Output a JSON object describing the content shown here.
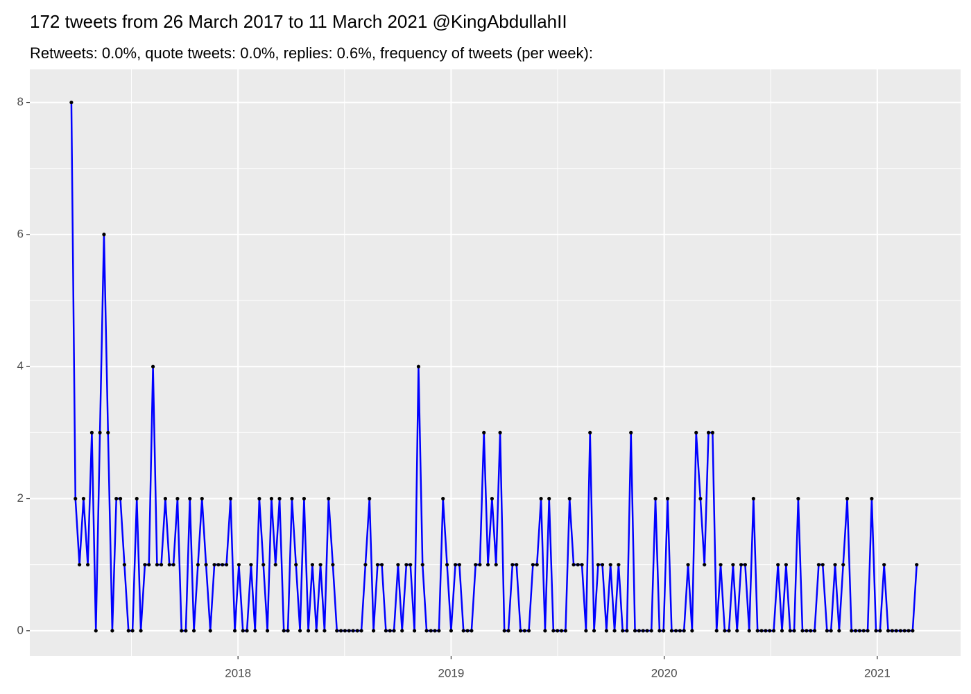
{
  "chart_data": {
    "type": "line",
    "title": "172 tweets from 26 March 2017 to 11 March 2021 @KingAbdullahII",
    "subtitle": "Retweets: 0.0%, quote tweets: 0.0%, replies: 0.6%, frequency of tweets (per week):",
    "x": [
      2017.218,
      2017.237,
      2017.256,
      2017.275,
      2017.295,
      2017.314,
      2017.333,
      2017.352,
      2017.371,
      2017.39,
      2017.41,
      2017.429,
      2017.448,
      2017.467,
      2017.486,
      2017.505,
      2017.525,
      2017.544,
      2017.563,
      2017.582,
      2017.601,
      2017.62,
      2017.64,
      2017.659,
      2017.678,
      2017.697,
      2017.716,
      2017.735,
      2017.755,
      2017.774,
      2017.793,
      2017.812,
      2017.831,
      2017.85,
      2017.87,
      2017.889,
      2017.908,
      2017.927,
      2017.946,
      2017.965,
      2017.985,
      2018.004,
      2018.023,
      2018.042,
      2018.061,
      2018.08,
      2018.1,
      2018.119,
      2018.138,
      2018.157,
      2018.176,
      2018.195,
      2018.215,
      2018.234,
      2018.253,
      2018.272,
      2018.291,
      2018.31,
      2018.33,
      2018.349,
      2018.368,
      2018.387,
      2018.406,
      2018.425,
      2018.445,
      2018.464,
      2018.483,
      2018.502,
      2018.521,
      2018.54,
      2018.56,
      2018.579,
      2018.598,
      2018.617,
      2018.636,
      2018.655,
      2018.675,
      2018.694,
      2018.713,
      2018.732,
      2018.751,
      2018.77,
      2018.79,
      2018.809,
      2018.828,
      2018.847,
      2018.866,
      2018.885,
      2018.905,
      2018.924,
      2018.943,
      2018.962,
      2018.981,
      2019.0,
      2019.02,
      2019.039,
      2019.058,
      2019.077,
      2019.096,
      2019.115,
      2019.135,
      2019.154,
      2019.173,
      2019.192,
      2019.211,
      2019.23,
      2019.25,
      2019.269,
      2019.288,
      2019.307,
      2019.326,
      2019.345,
      2019.365,
      2019.384,
      2019.403,
      2019.422,
      2019.441,
      2019.46,
      2019.48,
      2019.499,
      2019.518,
      2019.537,
      2019.556,
      2019.575,
      2019.595,
      2019.614,
      2019.633,
      2019.652,
      2019.671,
      2019.69,
      2019.71,
      2019.729,
      2019.748,
      2019.767,
      2019.786,
      2019.805,
      2019.825,
      2019.844,
      2019.863,
      2019.882,
      2019.901,
      2019.92,
      2019.94,
      2019.959,
      2019.978,
      2019.997,
      2020.016,
      2020.035,
      2020.055,
      2020.074,
      2020.093,
      2020.112,
      2020.131,
      2020.15,
      2020.17,
      2020.189,
      2020.208,
      2020.227,
      2020.246,
      2020.265,
      2020.284,
      2020.304,
      2020.323,
      2020.342,
      2020.361,
      2020.38,
      2020.399,
      2020.419,
      2020.438,
      2020.457,
      2020.476,
      2020.495,
      2020.514,
      2020.534,
      2020.553,
      2020.572,
      2020.591,
      2020.61,
      2020.629,
      2020.649,
      2020.668,
      2020.687,
      2020.706,
      2020.725,
      2020.744,
      2020.764,
      2020.783,
      2020.802,
      2020.821,
      2020.84,
      2020.859,
      2020.879,
      2020.898,
      2020.917,
      2020.936,
      2020.955,
      2020.974,
      2020.994,
      2021.013,
      2021.032,
      2021.051,
      2021.07,
      2021.089,
      2021.109,
      2021.128,
      2021.147,
      2021.166,
      2021.185
    ],
    "series": [
      {
        "color": "#0000ff",
        "point_color": "#000000",
        "values": [
          8,
          2,
          1,
          2,
          1,
          3,
          0,
          3,
          6,
          3,
          0,
          2,
          2,
          1,
          0,
          0,
          2,
          0,
          1,
          1,
          4,
          1,
          1,
          2,
          1,
          1,
          2,
          0,
          0,
          2,
          0,
          1,
          2,
          1,
          0,
          1,
          1,
          1,
          1,
          2,
          0,
          1,
          0,
          0,
          1,
          0,
          2,
          1,
          0,
          2,
          1,
          2,
          0,
          0,
          2,
          1,
          0,
          2,
          0,
          1,
          0,
          1,
          0,
          2,
          1,
          0,
          0,
          0,
          0,
          0,
          0,
          0,
          1,
          2,
          0,
          1,
          1,
          0,
          0,
          0,
          1,
          0,
          1,
          1,
          0,
          4,
          1,
          0,
          0,
          0,
          0,
          2,
          1,
          0,
          1,
          1,
          0,
          0,
          0,
          1,
          1,
          3,
          1,
          2,
          1,
          3,
          0,
          0,
          1,
          1,
          0,
          0,
          0,
          1,
          1,
          2,
          0,
          2,
          0,
          0,
          0,
          0,
          2,
          1,
          1,
          1,
          0,
          3,
          0,
          1,
          1,
          0,
          1,
          0,
          1,
          0,
          0,
          3,
          0,
          0,
          0,
          0,
          0,
          2,
          0,
          0,
          2,
          0,
          0,
          0,
          0,
          1,
          0,
          3,
          2,
          1,
          3,
          3,
          0,
          1,
          0,
          0,
          1,
          0,
          1,
          1,
          0,
          2,
          0,
          0,
          0,
          0,
          0,
          1,
          0,
          1,
          0,
          0,
          2,
          0,
          0,
          0,
          0,
          1,
          1,
          0,
          0,
          1,
          0,
          1,
          2,
          0,
          0,
          0,
          0,
          0,
          2,
          0,
          0,
          1,
          0,
          0,
          0,
          0,
          0,
          0,
          0,
          1
        ]
      }
    ],
    "xlim": [
      2017.023,
      2021.391
    ],
    "ylim": [
      -0.38,
      8.5
    ],
    "xticks": [
      2018,
      2019,
      2020,
      2021
    ],
    "yticks": [
      0,
      2,
      4,
      6,
      8
    ],
    "grid": true,
    "minor_grid": true,
    "panel_color": "#ebebeb"
  }
}
